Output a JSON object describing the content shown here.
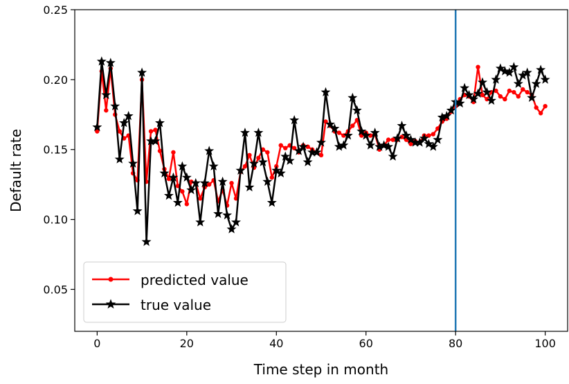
{
  "chart_data": {
    "type": "line",
    "title": "",
    "xlabel": "Time step in month",
    "ylabel": "Default rate",
    "xlim": [
      -5,
      105
    ],
    "ylim": [
      0.02,
      0.25
    ],
    "xticks": [
      0,
      20,
      40,
      60,
      80,
      100
    ],
    "yticks": [
      0.05,
      0.1,
      0.15,
      0.2,
      0.25
    ],
    "xtick_labels": [
      "0",
      "20",
      "40",
      "60",
      "80",
      "100"
    ],
    "ytick_labels": [
      "0.05",
      "0.10",
      "0.15",
      "0.20",
      "0.25"
    ],
    "grid": false,
    "legend_position": "lower-left",
    "vertical_line": {
      "x": 80,
      "color": "#1f77b4"
    },
    "x": [
      0,
      1,
      2,
      3,
      4,
      5,
      6,
      7,
      8,
      9,
      10,
      11,
      12,
      13,
      14,
      15,
      16,
      17,
      18,
      19,
      20,
      21,
      22,
      23,
      24,
      25,
      26,
      27,
      28,
      29,
      30,
      31,
      32,
      33,
      34,
      35,
      36,
      37,
      38,
      39,
      40,
      41,
      42,
      43,
      44,
      45,
      46,
      47,
      48,
      49,
      50,
      51,
      52,
      53,
      54,
      55,
      56,
      57,
      58,
      59,
      60,
      61,
      62,
      63,
      64,
      65,
      66,
      67,
      68,
      69,
      70,
      71,
      72,
      73,
      74,
      75,
      76,
      77,
      78,
      79,
      80,
      81,
      82,
      83,
      84,
      85,
      86,
      87,
      88,
      89,
      90,
      91,
      92,
      93,
      94,
      95,
      96,
      97,
      98,
      99,
      100
    ],
    "series": [
      {
        "name": "predicted value",
        "color": "#ff0000",
        "marker": "circle",
        "values": [
          0.163,
          0.206,
          0.178,
          0.208,
          0.175,
          0.163,
          0.158,
          0.16,
          0.133,
          0.128,
          0.2,
          0.127,
          0.163,
          0.164,
          0.149,
          0.136,
          0.129,
          0.148,
          0.124,
          0.12,
          0.111,
          0.127,
          0.126,
          0.115,
          0.123,
          0.125,
          0.128,
          0.113,
          0.121,
          0.11,
          0.126,
          0.115,
          0.134,
          0.138,
          0.146,
          0.137,
          0.144,
          0.15,
          0.148,
          0.13,
          0.138,
          0.153,
          0.151,
          0.153,
          0.151,
          0.148,
          0.153,
          0.152,
          0.15,
          0.148,
          0.146,
          0.17,
          0.167,
          0.163,
          0.162,
          0.16,
          0.163,
          0.167,
          0.171,
          0.16,
          0.162,
          0.16,
          0.161,
          0.15,
          0.153,
          0.157,
          0.157,
          0.157,
          0.159,
          0.157,
          0.154,
          0.156,
          0.155,
          0.16,
          0.16,
          0.161,
          0.165,
          0.17,
          0.172,
          0.177,
          0.181,
          0.186,
          0.189,
          0.188,
          0.184,
          0.209,
          0.189,
          0.186,
          0.191,
          0.192,
          0.188,
          0.186,
          0.192,
          0.191,
          0.188,
          0.193,
          0.191,
          0.189,
          0.18,
          0.176,
          0.181
        ]
      },
      {
        "name": "true value",
        "color": "#000000",
        "marker": "star",
        "values": [
          0.166,
          0.213,
          0.189,
          0.212,
          0.181,
          0.143,
          0.169,
          0.174,
          0.14,
          0.106,
          0.205,
          0.084,
          0.156,
          0.156,
          0.169,
          0.133,
          0.117,
          0.13,
          0.112,
          0.138,
          0.13,
          0.121,
          0.126,
          0.098,
          0.126,
          0.149,
          0.138,
          0.104,
          0.127,
          0.103,
          0.093,
          0.098,
          0.135,
          0.162,
          0.123,
          0.14,
          0.162,
          0.141,
          0.127,
          0.112,
          0.135,
          0.133,
          0.145,
          0.142,
          0.171,
          0.149,
          0.152,
          0.141,
          0.148,
          0.148,
          0.155,
          0.191,
          0.168,
          0.165,
          0.152,
          0.153,
          0.16,
          0.187,
          0.178,
          0.163,
          0.16,
          0.153,
          0.162,
          0.152,
          0.153,
          0.152,
          0.145,
          0.158,
          0.167,
          0.16,
          0.157,
          0.155,
          0.155,
          0.158,
          0.154,
          0.152,
          0.157,
          0.173,
          0.174,
          0.178,
          0.184,
          0.183,
          0.194,
          0.189,
          0.186,
          0.19,
          0.198,
          0.191,
          0.185,
          0.2,
          0.208,
          0.206,
          0.205,
          0.209,
          0.197,
          0.203,
          0.205,
          0.187,
          0.197,
          0.207,
          0.2
        ]
      }
    ]
  }
}
